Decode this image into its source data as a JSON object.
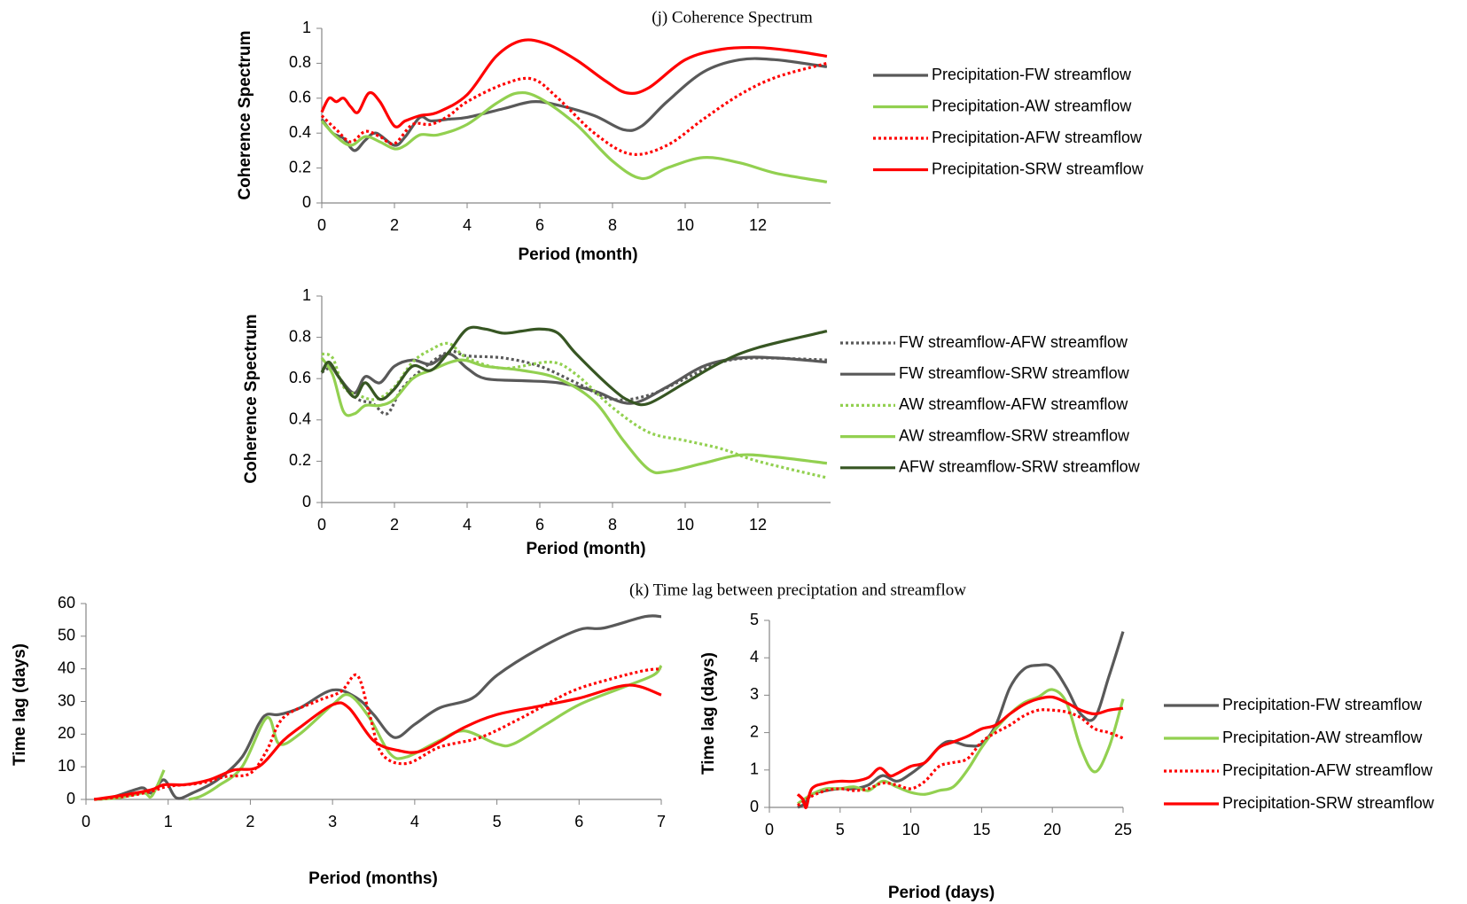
{
  "chart_data": [
    {
      "type": "line",
      "title": "(j) Coherence Spectrum",
      "x_label": "Period (month)",
      "y_label": "Coherence Spectrum",
      "xlim": [
        0,
        14
      ],
      "xticks": [
        0,
        2,
        4,
        6,
        8,
        10,
        12
      ],
      "ylim": [
        0,
        1
      ],
      "yticks": [
        0,
        0.2,
        0.4,
        0.6,
        0.8,
        1
      ],
      "legend": "right",
      "series": [
        {
          "name": "Precipitation-FW streamflow",
          "color": "#595959",
          "line_style": "solid",
          "x": [
            0,
            0.3,
            0.6,
            0.9,
            1.2,
            1.5,
            2,
            2.3,
            2.7,
            3,
            3.5,
            4,
            5,
            5.8,
            6.5,
            7.5,
            8.3,
            8.8,
            9.5,
            10.5,
            11.5,
            12.5,
            13.9
          ],
          "values": [
            0.48,
            0.4,
            0.37,
            0.3,
            0.36,
            0.4,
            0.33,
            0.38,
            0.49,
            0.47,
            0.48,
            0.49,
            0.54,
            0.58,
            0.56,
            0.5,
            0.42,
            0.44,
            0.58,
            0.75,
            0.82,
            0.82,
            0.78
          ]
        },
        {
          "name": "Precipitation-AW streamflow",
          "color": "#92d050",
          "line_style": "solid",
          "x": [
            0,
            0.4,
            0.8,
            1.2,
            1.6,
            2,
            2.3,
            2.7,
            3.2,
            4,
            4.8,
            5.4,
            6,
            7,
            8,
            8.8,
            9.5,
            10.5,
            11.5,
            12.5,
            13.9
          ],
          "values": [
            0.47,
            0.38,
            0.33,
            0.38,
            0.35,
            0.31,
            0.33,
            0.39,
            0.39,
            0.45,
            0.57,
            0.63,
            0.6,
            0.45,
            0.24,
            0.14,
            0.2,
            0.26,
            0.23,
            0.17,
            0.12
          ]
        },
        {
          "name": "Precipitation-AFW streamflow",
          "color": "#ff0000",
          "line_style": "dotted",
          "x": [
            0,
            0.4,
            0.8,
            1.2,
            1.6,
            2,
            2.5,
            3,
            3.5,
            4,
            5,
            5.8,
            6.5,
            7.5,
            8.5,
            9.5,
            10.5,
            11.5,
            12.5,
            13.9
          ],
          "values": [
            0.5,
            0.42,
            0.35,
            0.41,
            0.38,
            0.34,
            0.45,
            0.45,
            0.5,
            0.58,
            0.68,
            0.71,
            0.6,
            0.4,
            0.28,
            0.33,
            0.48,
            0.62,
            0.72,
            0.8
          ]
        },
        {
          "name": "Precipitation-SRW streamflow",
          "color": "#ff0000",
          "line_style": "solid",
          "x": [
            0,
            0.2,
            0.4,
            0.6,
            0.8,
            1,
            1.3,
            1.6,
            2,
            2.3,
            2.7,
            3.2,
            4,
            4.8,
            5.5,
            6.2,
            7,
            7.8,
            8.4,
            9,
            10,
            11,
            12,
            13,
            13.9
          ],
          "values": [
            0.52,
            0.6,
            0.58,
            0.6,
            0.55,
            0.52,
            0.63,
            0.58,
            0.44,
            0.47,
            0.5,
            0.52,
            0.62,
            0.84,
            0.93,
            0.91,
            0.82,
            0.7,
            0.63,
            0.66,
            0.82,
            0.88,
            0.89,
            0.87,
            0.84
          ]
        }
      ]
    },
    {
      "type": "line",
      "x_label": "Period (month)",
      "y_label": "Coherence Spectrum",
      "xlim": [
        0,
        14
      ],
      "xticks": [
        0,
        2,
        4,
        6,
        8,
        10,
        12
      ],
      "ylim": [
        0,
        1
      ],
      "yticks": [
        0,
        0.2,
        0.4,
        0.6,
        0.8,
        1
      ],
      "legend": "right",
      "series": [
        {
          "name": "FW streamflow-AFW streamflow",
          "color": "#595959",
          "line_style": "dotted",
          "x": [
            0,
            0.3,
            0.6,
            1,
            1.4,
            1.8,
            2.2,
            2.8,
            3.5,
            4,
            5,
            6,
            7,
            8,
            9,
            10,
            11,
            12,
            13.9
          ],
          "values": [
            0.63,
            0.65,
            0.57,
            0.5,
            0.48,
            0.43,
            0.55,
            0.65,
            0.73,
            0.71,
            0.7,
            0.66,
            0.58,
            0.5,
            0.52,
            0.6,
            0.68,
            0.7,
            0.69
          ]
        },
        {
          "name": "FW streamflow-SRW streamflow",
          "color": "#595959",
          "line_style": "solid",
          "x": [
            0,
            0.2,
            0.5,
            0.9,
            1.2,
            1.6,
            2,
            2.5,
            3,
            3.5,
            4,
            4.5,
            5.5,
            6.5,
            7.5,
            8.5,
            9.5,
            10.5,
            11.5,
            12.5,
            13.9
          ],
          "values": [
            0.63,
            0.67,
            0.6,
            0.53,
            0.61,
            0.58,
            0.66,
            0.69,
            0.67,
            0.72,
            0.65,
            0.6,
            0.59,
            0.58,
            0.54,
            0.48,
            0.56,
            0.66,
            0.7,
            0.7,
            0.68
          ]
        },
        {
          "name": "AW streamflow-AFW streamflow",
          "color": "#92d050",
          "line_style": "dotted",
          "x": [
            0,
            0.3,
            0.6,
            1,
            1.5,
            2,
            2.5,
            3,
            3.5,
            4,
            5,
            6.3,
            7,
            8,
            9,
            10,
            11,
            12,
            13.9
          ],
          "values": [
            0.72,
            0.7,
            0.56,
            0.52,
            0.5,
            0.56,
            0.68,
            0.74,
            0.77,
            0.7,
            0.65,
            0.68,
            0.62,
            0.46,
            0.34,
            0.3,
            0.26,
            0.2,
            0.12
          ]
        },
        {
          "name": "AW streamflow-SRW streamflow",
          "color": "#92d050",
          "line_style": "solid",
          "x": [
            0,
            0.3,
            0.6,
            0.9,
            1.2,
            1.6,
            2,
            2.5,
            3,
            3.8,
            4.5,
            5.5,
            6.5,
            7.5,
            8.3,
            9,
            9.5,
            10.5,
            11.5,
            12.5,
            13.9
          ],
          "values": [
            0.7,
            0.62,
            0.44,
            0.43,
            0.47,
            0.47,
            0.5,
            0.6,
            0.64,
            0.69,
            0.66,
            0.64,
            0.6,
            0.49,
            0.3,
            0.16,
            0.15,
            0.19,
            0.23,
            0.22,
            0.19
          ]
        },
        {
          "name": "AFW streamflow-SRW streamflow",
          "color": "#375623",
          "line_style": "solid",
          "x": [
            0,
            0.2,
            0.5,
            0.9,
            1.2,
            1.6,
            2,
            2.5,
            3,
            3.5,
            4,
            4.5,
            5,
            5.5,
            6,
            6.5,
            7,
            8,
            8.5,
            9,
            10,
            11,
            12,
            13.9
          ],
          "values": [
            0.63,
            0.68,
            0.6,
            0.51,
            0.58,
            0.5,
            0.55,
            0.66,
            0.64,
            0.73,
            0.84,
            0.84,
            0.82,
            0.83,
            0.84,
            0.82,
            0.72,
            0.55,
            0.49,
            0.48,
            0.58,
            0.68,
            0.75,
            0.83
          ]
        }
      ]
    },
    {
      "type": "line",
      "title": "(k) Time lag between preciptation and streamflow",
      "x_label": "Period (months)",
      "y_label": "Time lag (days)",
      "xlim": [
        0,
        7
      ],
      "xticks": [
        0,
        1,
        2,
        3,
        4,
        5,
        6,
        7
      ],
      "ylim": [
        0,
        60
      ],
      "yticks": [
        0,
        10,
        20,
        30,
        40,
        50,
        60
      ],
      "series": [
        {
          "color": "#595959",
          "line_style": "solid",
          "x": [
            0.1,
            0.3,
            0.6,
            0.7,
            0.8,
            0.95,
            1.1,
            1.3,
            1.6,
            1.9,
            2.1,
            2.2,
            2.35,
            2.6,
            3,
            3.3,
            3.5,
            3.75,
            4,
            4.3,
            4.7,
            5,
            5.5,
            6,
            6.3,
            6.8,
            7
          ],
          "values": [
            0,
            0.5,
            3,
            3.5,
            2,
            6,
            0.5,
            2,
            6,
            13,
            23,
            26,
            26,
            28,
            33.5,
            31,
            26,
            19,
            23,
            28,
            31,
            38,
            46,
            52,
            52.5,
            56,
            56
          ]
        },
        {
          "color": "#92d050",
          "line_style": "solid",
          "x": [
            0.1,
            0.4,
            0.7,
            0.8,
            0.95,
            1.1,
            1.25,
            1.4,
            1.6,
            1.9,
            2.2,
            2.35,
            2.6,
            3,
            3.2,
            3.45,
            3.7,
            3.9,
            4.3,
            4.6,
            5,
            5.2,
            5.6,
            6,
            6.5,
            6.9,
            7
          ],
          "values": [
            0,
            0.5,
            2,
            1,
            9,
            null,
            0,
            1,
            4,
            10,
            25,
            17,
            20,
            29,
            32,
            25,
            14,
            13,
            18,
            21,
            17,
            17,
            23,
            29,
            34,
            38,
            41
          ]
        },
        {
          "color": "#ff0000",
          "line_style": "dotted",
          "x": [
            0.1,
            0.5,
            0.8,
            1,
            1.4,
            1.7,
            2,
            2.2,
            2.4,
            2.8,
            3.1,
            3.3,
            3.45,
            3.6,
            3.9,
            4.3,
            4.8,
            5.3,
            5.9,
            6.4,
            6.8,
            7
          ],
          "values": [
            0,
            1,
            2.5,
            4,
            5,
            7,
            8,
            15,
            25,
            30,
            33,
            38,
            26,
            14,
            11,
            16,
            19,
            25,
            33,
            37,
            39.5,
            40
          ]
        },
        {
          "color": "#ff0000",
          "line_style": "solid",
          "x": [
            0.1,
            0.5,
            0.8,
            0.95,
            1.2,
            1.5,
            1.8,
            2.1,
            2.4,
            2.6,
            3,
            3.2,
            3.5,
            3.8,
            4.1,
            4.6,
            5,
            5.5,
            6,
            6.6,
            7
          ],
          "values": [
            0,
            1.5,
            3,
            4.5,
            4.5,
            6,
            9,
            10,
            18,
            22,
            29,
            28,
            18,
            15,
            15,
            22,
            26,
            28.5,
            31,
            35,
            32
          ]
        }
      ]
    },
    {
      "type": "line",
      "x_label": "Period  (days)",
      "y_label": "Time lag (days)",
      "xlim": [
        0,
        25
      ],
      "xticks": [
        0,
        5,
        10,
        15,
        20,
        25
      ],
      "ylim": [
        0,
        5
      ],
      "yticks": [
        0,
        1,
        2,
        3,
        4,
        5
      ],
      "legend": "right",
      "series": [
        {
          "name": "Precipitation-FW streamflow",
          "color": "#595959",
          "line_style": "solid",
          "x": [
            2,
            2.5,
            3,
            4,
            5,
            6,
            7,
            8,
            9,
            10,
            11,
            12.5,
            14,
            15,
            16,
            17,
            18,
            19,
            20,
            21,
            22,
            23,
            24,
            25
          ],
          "values": [
            0,
            0.1,
            0.35,
            0.45,
            0.5,
            0.5,
            0.6,
            0.85,
            0.7,
            0.9,
            1.2,
            1.75,
            1.65,
            1.7,
            2.2,
            3.2,
            3.7,
            3.8,
            3.75,
            3.2,
            2.5,
            2.4,
            3.5,
            4.7
          ]
        },
        {
          "name": "Precipitation-AW streamflow",
          "color": "#92d050",
          "line_style": "solid",
          "x": [
            2,
            3,
            4,
            5,
            6,
            7,
            8,
            9,
            10,
            11,
            12,
            13,
            14,
            15,
            16,
            17,
            18,
            19,
            20,
            21,
            22,
            23,
            24,
            25
          ],
          "values": [
            0.1,
            0.35,
            0.5,
            0.5,
            0.55,
            0.45,
            0.7,
            0.55,
            0.4,
            0.35,
            0.45,
            0.55,
            1,
            1.6,
            2.1,
            2.5,
            2.8,
            2.95,
            3.15,
            2.8,
            1.6,
            0.95,
            1.6,
            2.9
          ]
        },
        {
          "name": "Precipitation-AFW streamflow",
          "color": "#ff0000",
          "line_style": "dotted",
          "x": [
            2,
            3,
            4,
            5,
            6,
            7,
            8,
            9,
            10,
            11,
            12,
            13,
            14,
            15,
            16,
            17,
            18,
            19,
            20,
            21,
            22,
            23,
            24,
            25
          ],
          "values": [
            0.05,
            0.3,
            0.45,
            0.5,
            0.45,
            0.5,
            0.65,
            0.6,
            0.5,
            0.7,
            1.1,
            1.2,
            1.3,
            1.75,
            2,
            2.2,
            2.45,
            2.6,
            2.6,
            2.55,
            2.4,
            2.1,
            2,
            1.85
          ]
        },
        {
          "name": "Precipitation-SRW streamflow",
          "color": "#ff0000",
          "line_style": "solid",
          "x": [
            2,
            2.4,
            2.6,
            3,
            4,
            5,
            6,
            7,
            7.8,
            8.5,
            9,
            10,
            11,
            12,
            13,
            14,
            15,
            16,
            17,
            18,
            19,
            20,
            21,
            22,
            23,
            24,
            25
          ],
          "values": [
            0.35,
            0.2,
            0,
            0.5,
            0.65,
            0.7,
            0.7,
            0.8,
            1.05,
            0.85,
            0.9,
            1.1,
            1.2,
            1.6,
            1.75,
            1.9,
            2.1,
            2.2,
            2.5,
            2.75,
            2.9,
            2.95,
            2.8,
            2.6,
            2.5,
            2.6,
            2.65
          ]
        }
      ]
    }
  ]
}
